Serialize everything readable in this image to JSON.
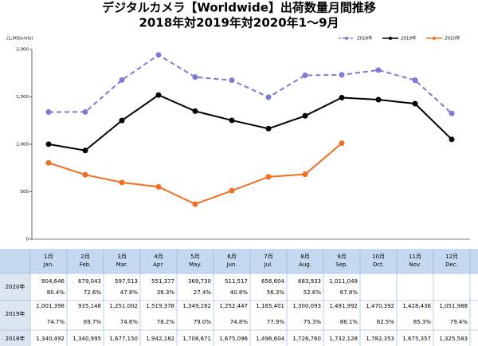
{
  "chart_data": {
    "type": "line",
    "title": "デジタルカメラ【Worldwide】出荷数量月間推移",
    "subtitle": "2018年対2019年対2020年1～9月",
    "y_label": "(1,000units)",
    "categories": [
      "1月",
      "2月",
      "3月",
      "4月",
      "5月",
      "6月",
      "7月",
      "8月",
      "9月",
      "10月",
      "11月",
      "12月"
    ],
    "categories_en": [
      "Jan.",
      "Feb.",
      "Mar.",
      "Apr.",
      "May.",
      "Jun.",
      "Jul.",
      "Aug.",
      "Sep.",
      "Oct.",
      "Nov.",
      "Dec."
    ],
    "ylim": [
      0,
      2000
    ],
    "yticks": [
      0,
      500,
      {
        "value": 1000,
        "label": "1,000"
      },
      {
        "value": 1500,
        "label": "1,500"
      },
      {
        "value": 2000,
        "label": "2,000"
      }
    ],
    "grid": false,
    "legend": "top-right",
    "series": [
      {
        "name": "2018年",
        "color": "#7b7bd6",
        "dashed": true,
        "values": [
          1340.492,
          1340.995,
          1677.15,
          1942.182,
          1708.671,
          1675.096,
          1496.604,
          1726.76,
          1732.128,
          1782.353,
          1675.357,
          1325.583
        ],
        "value_labels": [
          "1,340,492",
          "1,340,995",
          "1,677,150",
          "1,942,182",
          "1,708,671",
          "1,675,096",
          "1,496,604",
          "1,726,760",
          "1,732,128",
          "1,782,353",
          "1,675,357",
          "1,325,583"
        ]
      },
      {
        "name": "2019年",
        "color": "#000000",
        "dashed": false,
        "values": [
          1001.398,
          935.148,
          1251.002,
          1519.378,
          1349.282,
          1252.447,
          1165.401,
          1300.093,
          1491.992,
          1470.392,
          1428.436,
          1051.988
        ],
        "value_labels": [
          "1,001,398",
          "935,148",
          "1,251,002",
          "1,519,378",
          "1,349,282",
          "1,252,447",
          "1,165,401",
          "1,300,093",
          "1,491,992",
          "1,470,392",
          "1,428,436",
          "1,051,988"
        ],
        "yoy_labels": [
          "74.7%",
          "69.7%",
          "74.6%",
          "78.2%",
          "79.0%",
          "74.8%",
          "77.9%",
          "75.3%",
          "86.1%",
          "82.5%",
          "85.3%",
          "79.4%"
        ]
      },
      {
        "name": "2020年",
        "color": "#f07020",
        "dashed": false,
        "values": [
          804.646,
          679.043,
          597.513,
          551.377,
          369.73,
          511.517,
          656.604,
          683.933,
          1011.049,
          null,
          null,
          null
        ],
        "value_labels": [
          "804,646",
          "679,043",
          "597,513",
          "551,377",
          "369,730",
          "511,517",
          "656,604",
          "683,933",
          "1,011,049",
          null,
          null,
          null
        ],
        "yoy_labels": [
          "80.4%",
          "72.6%",
          "47.8%",
          "36.3%",
          "27.4%",
          "40.8%",
          "56.3%",
          "52.6%",
          "67.8%"
        ]
      }
    ]
  }
}
